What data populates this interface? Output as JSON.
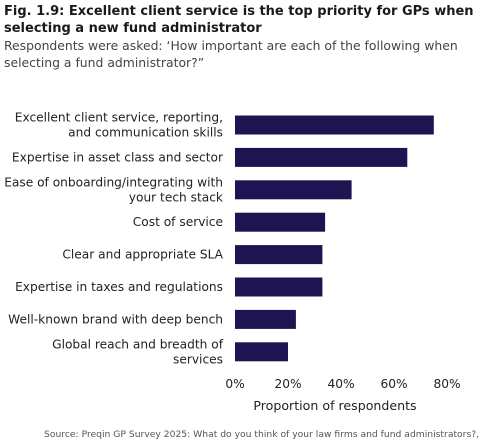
{
  "figure": {
    "title": "Fig. 1.9: Excellent client service is the top priority for GPs when selecting a new fund administrator",
    "subtitle": "Respondents were asked: ‘How important are each of the following when selecting a fund administrator?”",
    "source": "Source: Preqin GP Survey 2025: What do you think of your law firms and fund administrators?,"
  },
  "chart_data": {
    "type": "bar",
    "orientation": "horizontal",
    "categories": [
      [
        "Excellent client service, reporting,",
        "and communication skills"
      ],
      [
        "Expertise in asset class and sector"
      ],
      [
        "Ease of onboarding/integrating with",
        "your tech stack"
      ],
      [
        "Cost of service"
      ],
      [
        "Clear and appropriate SLA"
      ],
      [
        "Expertise in taxes and regulations"
      ],
      [
        "Well-known brand with deep bench"
      ],
      [
        "Global reach and breadth of",
        "services"
      ]
    ],
    "values": [
      75,
      65,
      44,
      34,
      33,
      33,
      23,
      20
    ],
    "unit": "%",
    "xlabel": "Proportion of respondents",
    "xlim": [
      0,
      80
    ],
    "xticks": [
      0,
      20,
      40,
      60,
      80
    ],
    "xtick_labels": [
      "0%",
      "20%",
      "40%",
      "60%",
      "80%"
    ],
    "bar_color": "#1f1452",
    "grid": false,
    "legend": "none"
  }
}
